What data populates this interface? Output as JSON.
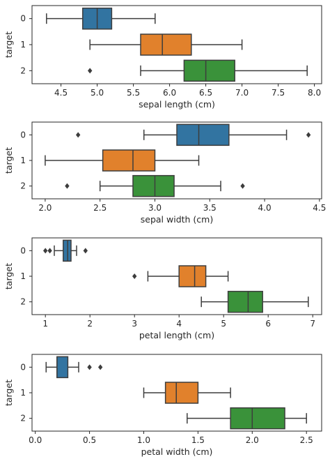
{
  "chart_data": [
    {
      "type": "boxplot",
      "xlabel": "sepal length (cm)",
      "ylabel": "target",
      "xlim": [
        4.1,
        8.1
      ],
      "xticks": [
        4.5,
        5.0,
        5.5,
        6.0,
        6.5,
        7.0,
        7.5,
        8.0
      ],
      "xtick_labels": [
        "4.5",
        "5.0",
        "5.5",
        "6.0",
        "6.5",
        "7.0",
        "7.5",
        "8.0"
      ],
      "categories": [
        "0",
        "1",
        "2"
      ],
      "boxes": [
        {
          "category": "0",
          "whisker_low": 4.3,
          "q1": 4.8,
          "median": 5.0,
          "q3": 5.2,
          "whisker_high": 5.8,
          "outliers": []
        },
        {
          "category": "1",
          "whisker_low": 4.9,
          "q1": 5.6,
          "median": 5.9,
          "q3": 6.3,
          "whisker_high": 7.0,
          "outliers": []
        },
        {
          "category": "2",
          "whisker_low": 5.6,
          "q1": 6.2,
          "median": 6.5,
          "q3": 6.9,
          "whisker_high": 7.9,
          "outliers": [
            4.9
          ]
        }
      ]
    },
    {
      "type": "boxplot",
      "xlabel": "sepal width (cm)",
      "ylabel": "target",
      "xlim": [
        1.88,
        4.52
      ],
      "xticks": [
        2.0,
        2.5,
        3.0,
        3.5,
        4.0,
        4.5
      ],
      "xtick_labels": [
        "2.0",
        "2.5",
        "3.0",
        "3.5",
        "4.0",
        "4.5"
      ],
      "categories": [
        "0",
        "1",
        "2"
      ],
      "boxes": [
        {
          "category": "0",
          "whisker_low": 2.9,
          "q1": 3.2,
          "median": 3.4,
          "q3": 3.675,
          "whisker_high": 4.2,
          "outliers": [
            2.3,
            4.4
          ]
        },
        {
          "category": "1",
          "whisker_low": 2.0,
          "q1": 2.525,
          "median": 2.8,
          "q3": 3.0,
          "whisker_high": 3.4,
          "outliers": []
        },
        {
          "category": "2",
          "whisker_low": 2.5,
          "q1": 2.8,
          "median": 3.0,
          "q3": 3.175,
          "whisker_high": 3.6,
          "outliers": [
            2.2,
            3.8
          ]
        }
      ]
    },
    {
      "type": "boxplot",
      "xlabel": "petal length (cm)",
      "ylabel": "target",
      "xlim": [
        0.7,
        7.2
      ],
      "xticks": [
        1,
        2,
        3,
        4,
        5,
        6,
        7
      ],
      "xtick_labels": [
        "1",
        "2",
        "3",
        "4",
        "5",
        "6",
        "7"
      ],
      "categories": [
        "0",
        "1",
        "2"
      ],
      "boxes": [
        {
          "category": "0",
          "whisker_low": 1.2,
          "q1": 1.4,
          "median": 1.5,
          "q3": 1.575,
          "whisker_high": 1.7,
          "outliers": [
            1.0,
            1.1,
            1.9
          ]
        },
        {
          "category": "1",
          "whisker_low": 3.3,
          "q1": 4.0,
          "median": 4.35,
          "q3": 4.6,
          "whisker_high": 5.1,
          "outliers": [
            3.0
          ]
        },
        {
          "category": "2",
          "whisker_low": 4.5,
          "q1": 5.1,
          "median": 5.55,
          "q3": 5.875,
          "whisker_high": 6.9,
          "outliers": []
        }
      ]
    },
    {
      "type": "boxplot",
      "xlabel": "petal width (cm)",
      "ylabel": "target",
      "xlim": [
        -0.03,
        2.64
      ],
      "xticks": [
        0.0,
        0.5,
        1.0,
        1.5,
        2.0,
        2.5
      ],
      "xtick_labels": [
        "0.0",
        "0.5",
        "1.0",
        "1.5",
        "2.0",
        "2.5"
      ],
      "categories": [
        "0",
        "1",
        "2"
      ],
      "boxes": [
        {
          "category": "0",
          "whisker_low": 0.1,
          "q1": 0.2,
          "median": 0.2,
          "q3": 0.3,
          "whisker_high": 0.4,
          "outliers": [
            0.5,
            0.6
          ]
        },
        {
          "category": "1",
          "whisker_low": 1.0,
          "q1": 1.2,
          "median": 1.3,
          "q3": 1.5,
          "whisker_high": 1.8,
          "outliers": []
        },
        {
          "category": "2",
          "whisker_low": 1.4,
          "q1": 1.8,
          "median": 2.0,
          "q3": 2.3,
          "whisker_high": 2.5,
          "outliers": []
        }
      ]
    }
  ],
  "colors": {
    "0": "#3274a1",
    "1": "#e1812c",
    "2": "#3a923a",
    "line": "#3d3d3d",
    "axis": "#262626"
  }
}
